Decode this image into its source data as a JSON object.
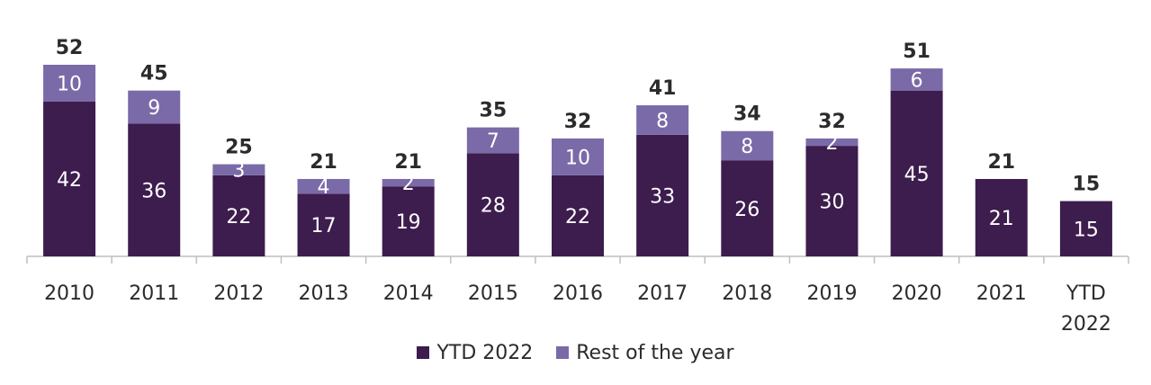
{
  "chart_data": {
    "type": "bar",
    "stacked": true,
    "categories": [
      "2010",
      "2011",
      "2012",
      "2013",
      "2014",
      "2015",
      "2016",
      "2017",
      "2018",
      "2019",
      "2020",
      "2021",
      "YTD 2022"
    ],
    "series": [
      {
        "name": "YTD 2022",
        "color": "#3d1c4e",
        "values": [
          42,
          36,
          22,
          17,
          19,
          28,
          22,
          33,
          26,
          30,
          45,
          21,
          15
        ]
      },
      {
        "name": "Rest of the year",
        "color": "#7b6aa8",
        "values": [
          10,
          9,
          3,
          4,
          2,
          7,
          10,
          8,
          8,
          2,
          6,
          null,
          null
        ]
      }
    ],
    "totals": [
      52,
      45,
      25,
      21,
      21,
      35,
      32,
      41,
      34,
      32,
      51,
      21,
      15
    ],
    "ylim": [
      0,
      52
    ],
    "grid": false,
    "legend_position": "bottom"
  }
}
